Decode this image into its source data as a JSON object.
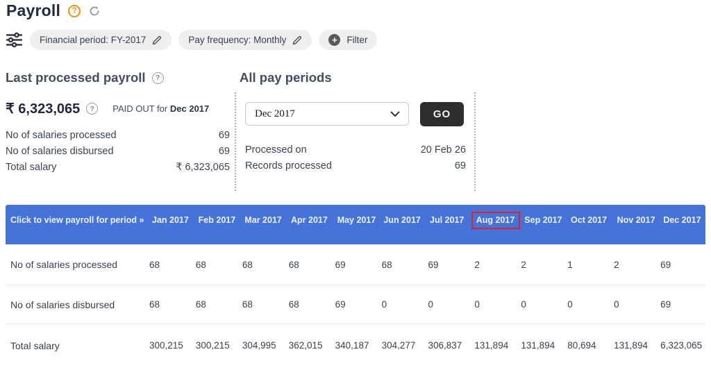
{
  "page": {
    "title": "Payroll"
  },
  "filters": {
    "financial_period_label": "Financial period: FY-2017",
    "pay_frequency_label": "Pay frequency: Monthly",
    "filter_label": "Filter",
    "plus_glyph": "+"
  },
  "help_glyph": "?",
  "last_processed": {
    "heading": "Last processed payroll",
    "amount": "₹ 6,323,065",
    "paid_out_prefix": "PAID OUT for ",
    "paid_out_period": "Dec 2017",
    "stats": [
      {
        "label": "No of salaries processed",
        "value": "69"
      },
      {
        "label": "No of salaries disbursed",
        "value": "69"
      },
      {
        "label": "Total salary",
        "value": "₹ 6,323,065"
      }
    ]
  },
  "all_pay_periods": {
    "heading": "All pay periods",
    "selected_period": "Dec 2017",
    "go_label": "GO",
    "stats": [
      {
        "label": "Processed on",
        "value": "20 Feb 26"
      },
      {
        "label": "Records processed",
        "value": "69"
      }
    ]
  },
  "table": {
    "corner_label": "Click to view payroll for period »",
    "months": [
      "Jan 2017",
      "Feb 2017",
      "Mar 2017",
      "Apr 2017",
      "May 2017",
      "Jun 2017",
      "Jul 2017",
      "Aug 2017",
      "Sep 2017",
      "Oct 2017",
      "Nov 2017",
      "Dec 2017"
    ],
    "highlighted_month": "Aug 2017",
    "rows": [
      {
        "label": "No of salaries processed",
        "values": [
          "68",
          "68",
          "68",
          "68",
          "69",
          "68",
          "69",
          "2",
          "2",
          "1",
          "2",
          "69"
        ]
      },
      {
        "label": "No of salaries disbursed",
        "values": [
          "68",
          "68",
          "68",
          "68",
          "69",
          "0",
          "0",
          "0",
          "0",
          "0",
          "0",
          "69"
        ]
      },
      {
        "label": "Total salary",
        "values": [
          "300,215",
          "300,215",
          "304,995",
          "362,015",
          "340,187",
          "304,277",
          "306,837",
          "131,894",
          "131,894",
          "80,694",
          "131,894",
          "6,323,065"
        ]
      }
    ]
  },
  "colors": {
    "table_header_blue": "#4573d9",
    "highlight_red": "#e02020",
    "help_orange": "#f0920f",
    "go_button_dark": "#2e2d2c",
    "pill_gray": "#efefef"
  }
}
